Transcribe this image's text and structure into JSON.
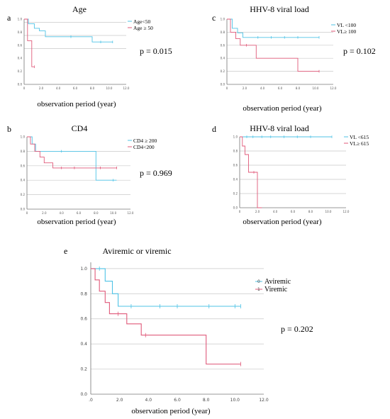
{
  "chart_data": [
    {
      "type": "line",
      "subtype": "kaplan-meier",
      "panel": "a",
      "title": "Age",
      "xlabel": "observation period (year)",
      "p_value": "p = 0.015",
      "xlim": [
        0,
        12
      ],
      "ylim": [
        0,
        1
      ],
      "xticks": [
        "0",
        "2.0",
        "4.0",
        "6.0",
        "8.0",
        "10.0",
        "12.0"
      ],
      "yticks": [
        "0.0",
        "0.2",
        "0.4",
        "0.6",
        "0.8",
        "1.0"
      ],
      "grid": true,
      "legend_position": "top-right",
      "series": [
        {
          "name": "Age<50",
          "color": "#4fc3e6",
          "x": [
            0,
            0.5,
            0.5,
            1.2,
            1.2,
            1.8,
            1.8,
            2.5,
            2.5,
            8.0,
            8.0,
            10.4
          ],
          "y": [
            1.0,
            1.0,
            0.93,
            0.93,
            0.86,
            0.86,
            0.82,
            0.82,
            0.73,
            0.73,
            0.65,
            0.65
          ],
          "censored": [
            [
              5.5,
              0.73
            ],
            [
              9.0,
              0.65
            ],
            [
              10.4,
              0.65
            ]
          ]
        },
        {
          "name": "Age ≥ 50",
          "color": "#e05a7a",
          "x": [
            0,
            0.4,
            0.4,
            0.9,
            0.9,
            1.2
          ],
          "y": [
            1.0,
            1.0,
            0.67,
            0.67,
            0.27,
            0.27
          ],
          "censored": [
            [
              1.2,
              0.27
            ]
          ]
        }
      ]
    },
    {
      "type": "line",
      "subtype": "kaplan-meier",
      "panel": "b",
      "title": "CD4",
      "xlabel": "observation period (year)",
      "p_value": "p = 0.969",
      "xlim": [
        0,
        12
      ],
      "ylim": [
        0,
        1
      ],
      "xticks": [
        "0",
        "2.0",
        "4.0",
        "6.0",
        "8.0",
        "10.0",
        "12.0"
      ],
      "yticks": [
        "0.0",
        "0.2",
        "0.4",
        "0.6",
        "0.8",
        "1.0"
      ],
      "grid": true,
      "legend_position": "top-right",
      "series": [
        {
          "name": "CD4 ≥ 200",
          "color": "#4fc3e6",
          "x": [
            0,
            0.6,
            0.6,
            1.0,
            1.0,
            8.0,
            8.0,
            10.4
          ],
          "y": [
            1.0,
            1.0,
            0.9,
            0.9,
            0.8,
            0.8,
            0.4,
            0.4
          ],
          "censored": [
            [
              4.0,
              0.8
            ],
            [
              10.0,
              0.4
            ]
          ]
        },
        {
          "name": "CD4<200",
          "color": "#e05a7a",
          "x": [
            0,
            0.4,
            0.4,
            0.9,
            0.9,
            1.5,
            1.5,
            2.0,
            2.0,
            3.0,
            3.0,
            10.4
          ],
          "y": [
            1.0,
            1.0,
            0.9,
            0.9,
            0.8,
            0.8,
            0.72,
            0.72,
            0.64,
            0.64,
            0.57,
            0.57
          ],
          "censored": [
            [
              4.0,
              0.57
            ],
            [
              5.5,
              0.57
            ],
            [
              8.5,
              0.57
            ],
            [
              10.4,
              0.57
            ]
          ]
        }
      ]
    },
    {
      "type": "line",
      "subtype": "kaplan-meier",
      "panel": "c",
      "title": "HHV-8 viral load",
      "xlabel": "observation period (year)",
      "p_value": "p = 0.102",
      "xlim": [
        0,
        12
      ],
      "ylim": [
        0,
        1
      ],
      "xticks": [
        "0",
        "2.0",
        "4.0",
        "6.0",
        "8.0",
        "10.0",
        "12.0"
      ],
      "yticks": [
        "0.0",
        "0.2",
        "0.4",
        "0.6",
        "0.8",
        "1.0"
      ],
      "grid": true,
      "legend_position": "top-right",
      "series": [
        {
          "name": "VL <100",
          "color": "#4fc3e6",
          "x": [
            0,
            0.6,
            0.6,
            1.2,
            1.2,
            1.8,
            1.8,
            10.4
          ],
          "y": [
            1.0,
            1.0,
            0.86,
            0.86,
            0.79,
            0.79,
            0.72,
            0.72
          ],
          "censored": [
            [
              3.5,
              0.72
            ],
            [
              5.0,
              0.72
            ],
            [
              6.5,
              0.72
            ],
            [
              8.0,
              0.72
            ],
            [
              10.4,
              0.72
            ]
          ]
        },
        {
          "name": "VL≥ 100",
          "color": "#e05a7a",
          "x": [
            0,
            0.4,
            0.4,
            1.0,
            1.0,
            1.5,
            1.5,
            3.3,
            3.3,
            8.0,
            8.0,
            10.4
          ],
          "y": [
            1.0,
            1.0,
            0.8,
            0.8,
            0.7,
            0.7,
            0.6,
            0.6,
            0.4,
            0.4,
            0.2,
            0.2
          ],
          "censored": [
            [
              2.2,
              0.6
            ],
            [
              10.4,
              0.2
            ]
          ]
        }
      ]
    },
    {
      "type": "line",
      "subtype": "kaplan-meier",
      "panel": "d",
      "title": "HHV-8 viral load",
      "xlabel": "observation period (year)",
      "xlim": [
        0,
        12
      ],
      "ylim": [
        0,
        1
      ],
      "xticks": [
        "0",
        "2.0",
        "4.0",
        "6.0",
        "8.0",
        "10.0",
        "12.0"
      ],
      "yticks": [
        "0.0",
        "0.2",
        "0.4",
        "0.6",
        "0.8",
        "1.0"
      ],
      "grid": true,
      "legend_position": "top-right",
      "series": [
        {
          "name": "VL <615",
          "color": "#4fc3e6",
          "x": [
            0,
            10.4
          ],
          "y": [
            1.0,
            1.0
          ],
          "censored": [
            [
              0.8,
              1.0
            ],
            [
              1.5,
              1.0
            ],
            [
              2.5,
              1.0
            ],
            [
              3.5,
              1.0
            ],
            [
              5.0,
              1.0
            ],
            [
              6.5,
              1.0
            ],
            [
              8.0,
              1.0
            ],
            [
              10.4,
              1.0
            ]
          ]
        },
        {
          "name": "VL≥ 615",
          "color": "#e05a7a",
          "x": [
            0,
            0.3,
            0.3,
            0.6,
            0.6,
            1.0,
            1.0,
            2.0,
            2.0,
            2.5
          ],
          "y": [
            1.0,
            1.0,
            0.87,
            0.87,
            0.75,
            0.75,
            0.5,
            0.5,
            0.0,
            0.0
          ],
          "censored": [
            [
              1.6,
              0.5
            ]
          ]
        }
      ]
    },
    {
      "type": "line",
      "subtype": "kaplan-meier",
      "panel": "e",
      "title": "Aviremic or viremic",
      "xlabel": "observation period (year)",
      "p_value": "p = 0.202",
      "xlim": [
        0,
        12
      ],
      "ylim": [
        0,
        1.05
      ],
      "xticks": [
        ".0",
        "2.0",
        "4.0",
        "6.0",
        "8.0",
        "10.0",
        "12.0"
      ],
      "yticks": [
        "0.0",
        "0.2",
        "0.4",
        "0.6",
        "0.8",
        "1.0"
      ],
      "grid": true,
      "legend_position": "top-right",
      "series": [
        {
          "name": "Aviremic",
          "code": "0",
          "color": "#4fc3e6",
          "x": [
            0,
            1.0,
            1.0,
            1.5,
            1.5,
            1.9,
            1.9,
            10.4
          ],
          "y": [
            1.0,
            1.0,
            0.9,
            0.9,
            0.8,
            0.8,
            0.7,
            0.7
          ],
          "censored": [
            [
              0.6,
              1.0
            ],
            [
              2.8,
              0.7
            ],
            [
              4.8,
              0.7
            ],
            [
              6.0,
              0.7
            ],
            [
              8.2,
              0.7
            ],
            [
              10.0,
              0.7
            ],
            [
              10.4,
              0.7
            ]
          ]
        },
        {
          "name": "Viremic",
          "code": "1",
          "color": "#e05a7a",
          "x": [
            0,
            0.3,
            0.3,
            0.6,
            0.6,
            1.0,
            1.0,
            1.3,
            1.3,
            2.5,
            2.5,
            3.5,
            3.5,
            8.0,
            8.0,
            10.4
          ],
          "y": [
            1.0,
            1.0,
            0.91,
            0.91,
            0.82,
            0.82,
            0.73,
            0.73,
            0.64,
            0.64,
            0.56,
            0.56,
            0.47,
            0.47,
            0.24,
            0.24
          ],
          "censored": [
            [
              1.9,
              0.64
            ],
            [
              3.8,
              0.47
            ],
            [
              10.4,
              0.24
            ]
          ]
        }
      ]
    }
  ]
}
